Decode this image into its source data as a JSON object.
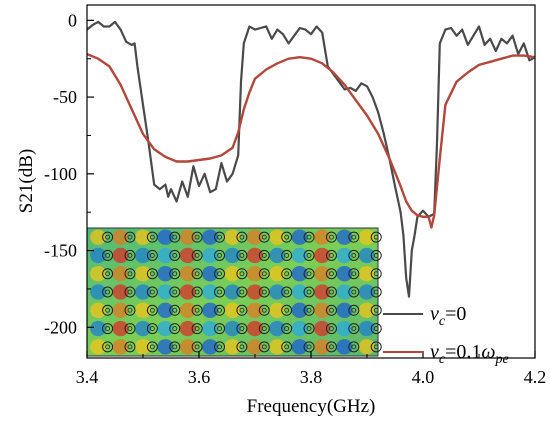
{
  "chart_data": {
    "type": "line",
    "xlabel": "Frequency(GHz)",
    "ylabel": "S21(dB)",
    "xlim": [
      3.4,
      4.2
    ],
    "ylim": [
      -220,
      10
    ],
    "xticks": [
      3.4,
      3.6,
      3.8,
      4.0,
      4.2
    ],
    "xtick_labels": [
      "3.4",
      "3.6",
      "3.8",
      "4.0",
      "4.2"
    ],
    "yticks": [
      0,
      -50,
      -100,
      -150,
      -200
    ],
    "ytick_labels": [
      "0",
      "-50",
      "-100",
      "-150",
      "-200"
    ],
    "grid": false,
    "legend_position": "bottom-right",
    "inset": "field distribution map (embedded image)",
    "series": [
      {
        "name": "v_c=0",
        "legend": {
          "var": "v",
          "sub": "c",
          "rest": "=0"
        },
        "color": "#4a4a4a",
        "points": [
          [
            3.4,
            -6
          ],
          [
            3.41,
            -3
          ],
          [
            3.42,
            -1
          ],
          [
            3.43,
            -4
          ],
          [
            3.44,
            -4
          ],
          [
            3.45,
            -1
          ],
          [
            3.46,
            -6
          ],
          [
            3.47,
            -14
          ],
          [
            3.48,
            -16
          ],
          [
            3.485,
            -15
          ],
          [
            3.49,
            -30
          ],
          [
            3.5,
            -55
          ],
          [
            3.51,
            -80
          ],
          [
            3.52,
            -107
          ],
          [
            3.53,
            -110
          ],
          [
            3.54,
            -107
          ],
          [
            3.545,
            -115
          ],
          [
            3.55,
            -110
          ],
          [
            3.56,
            -118
          ],
          [
            3.57,
            -105
          ],
          [
            3.58,
            -115
          ],
          [
            3.59,
            -95
          ],
          [
            3.6,
            -108
          ],
          [
            3.61,
            -100
          ],
          [
            3.62,
            -112
          ],
          [
            3.63,
            -110
          ],
          [
            3.64,
            -93
          ],
          [
            3.65,
            -105
          ],
          [
            3.66,
            -100
          ],
          [
            3.67,
            -88
          ],
          [
            3.675,
            -40
          ],
          [
            3.68,
            -15
          ],
          [
            3.69,
            -4
          ],
          [
            3.7,
            -6
          ],
          [
            3.71,
            -5
          ],
          [
            3.72,
            -4
          ],
          [
            3.73,
            -12
          ],
          [
            3.74,
            -6
          ],
          [
            3.75,
            -9
          ],
          [
            3.76,
            -15
          ],
          [
            3.77,
            -10
          ],
          [
            3.78,
            -5
          ],
          [
            3.79,
            -6
          ],
          [
            3.8,
            -9
          ],
          [
            3.81,
            -4
          ],
          [
            3.82,
            -8
          ],
          [
            3.83,
            -30
          ],
          [
            3.84,
            -35
          ],
          [
            3.85,
            -40
          ],
          [
            3.86,
            -45
          ],
          [
            3.87,
            -44
          ],
          [
            3.88,
            -46
          ],
          [
            3.89,
            -41
          ],
          [
            3.9,
            -43
          ],
          [
            3.91,
            -50
          ],
          [
            3.92,
            -60
          ],
          [
            3.93,
            -74
          ],
          [
            3.94,
            -90
          ],
          [
            3.95,
            -108
          ],
          [
            3.96,
            -125
          ],
          [
            3.965,
            -140
          ],
          [
            3.97,
            -168
          ],
          [
            3.975,
            -180
          ],
          [
            3.98,
            -150
          ],
          [
            3.985,
            -140
          ],
          [
            3.99,
            -128
          ],
          [
            4.0,
            -124
          ],
          [
            4.01,
            -128
          ],
          [
            4.02,
            -126
          ],
          [
            4.025,
            -80
          ],
          [
            4.03,
            -15
          ],
          [
            4.04,
            -6
          ],
          [
            4.05,
            -5
          ],
          [
            4.06,
            -10
          ],
          [
            4.07,
            -6
          ],
          [
            4.08,
            -16
          ],
          [
            4.09,
            -10
          ],
          [
            4.1,
            -4
          ],
          [
            4.11,
            -16
          ],
          [
            4.12,
            -12
          ],
          [
            4.13,
            -20
          ],
          [
            4.14,
            -12
          ],
          [
            4.15,
            -15
          ],
          [
            4.16,
            -10
          ],
          [
            4.17,
            -22
          ],
          [
            4.18,
            -15
          ],
          [
            4.19,
            -26
          ],
          [
            4.2,
            -24
          ]
        ]
      },
      {
        "name": "v_c=0.1ω_pe",
        "legend": {
          "var": "v",
          "sub": "c",
          "rest": "=0.1",
          "var2": "ω",
          "sub2": "pe"
        },
        "color": "#b3473a",
        "points": [
          [
            3.4,
            -22
          ],
          [
            3.42,
            -25
          ],
          [
            3.44,
            -30
          ],
          [
            3.46,
            -42
          ],
          [
            3.48,
            -58
          ],
          [
            3.5,
            -74
          ],
          [
            3.52,
            -84
          ],
          [
            3.54,
            -89
          ],
          [
            3.56,
            -92
          ],
          [
            3.58,
            -92
          ],
          [
            3.6,
            -91
          ],
          [
            3.62,
            -90
          ],
          [
            3.64,
            -88
          ],
          [
            3.66,
            -83
          ],
          [
            3.67,
            -73
          ],
          [
            3.68,
            -58
          ],
          [
            3.69,
            -47
          ],
          [
            3.7,
            -38
          ],
          [
            3.72,
            -32
          ],
          [
            3.74,
            -28
          ],
          [
            3.76,
            -25
          ],
          [
            3.78,
            -24
          ],
          [
            3.8,
            -25
          ],
          [
            3.82,
            -28
          ],
          [
            3.84,
            -34
          ],
          [
            3.86,
            -42
          ],
          [
            3.88,
            -52
          ],
          [
            3.9,
            -62
          ],
          [
            3.92,
            -74
          ],
          [
            3.94,
            -90
          ],
          [
            3.96,
            -108
          ],
          [
            3.97,
            -118
          ],
          [
            3.98,
            -124
          ],
          [
            3.99,
            -127
          ],
          [
            4.0,
            -128
          ],
          [
            4.01,
            -128
          ],
          [
            4.015,
            -135
          ],
          [
            4.02,
            -127
          ],
          [
            4.03,
            -90
          ],
          [
            4.04,
            -55
          ],
          [
            4.06,
            -40
          ],
          [
            4.08,
            -34
          ],
          [
            4.1,
            -29
          ],
          [
            4.12,
            -27
          ],
          [
            4.14,
            -25
          ],
          [
            4.16,
            -23
          ],
          [
            4.18,
            -23
          ],
          [
            4.2,
            -24
          ]
        ]
      }
    ]
  }
}
